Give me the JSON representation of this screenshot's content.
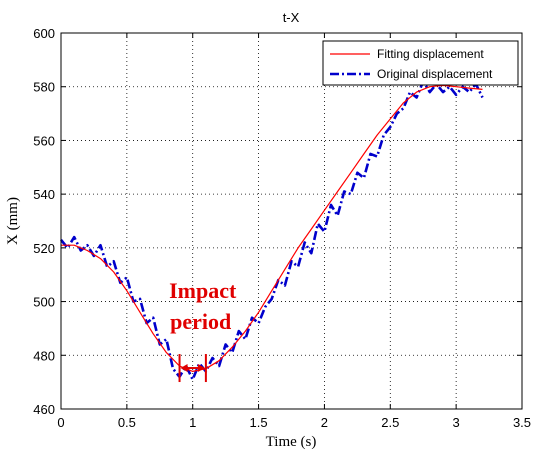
{
  "chart_data": {
    "type": "line",
    "title": "t-X",
    "xlabel": "Time (s)",
    "ylabel": "X (mm)",
    "xlim": [
      0,
      3.5
    ],
    "ylim": [
      460,
      600
    ],
    "xticks": [
      0,
      0.5,
      1,
      1.5,
      2,
      2.5,
      3,
      3.5
    ],
    "yticks": [
      460,
      480,
      500,
      520,
      540,
      560,
      580,
      600
    ],
    "xtick_labels": [
      "0",
      "0.5",
      "1",
      "1.5",
      "2",
      "2.5",
      "3",
      "3.5"
    ],
    "ytick_labels": [
      "460",
      "480",
      "500",
      "520",
      "540",
      "560",
      "580",
      "600"
    ],
    "grid": true,
    "legend_position": "top-right",
    "series": [
      {
        "name": "Fitting displacement",
        "color": "#ff0000",
        "style": "solid",
        "x": [
          0,
          0.1,
          0.2,
          0.3,
          0.4,
          0.5,
          0.6,
          0.7,
          0.8,
          0.9,
          1.0,
          1.1,
          1.2,
          1.3,
          1.4,
          1.5,
          1.6,
          1.7,
          1.8,
          1.9,
          2.0,
          2.1,
          2.2,
          2.3,
          2.4,
          2.5,
          2.6,
          2.7,
          2.8,
          2.9,
          3.0,
          3.1,
          3.2
        ],
        "y": [
          521,
          521,
          519,
          516,
          511,
          504,
          496,
          488,
          481,
          476,
          474,
          475,
          478,
          483,
          489,
          496,
          504,
          512,
          520,
          527,
          534,
          541,
          548,
          555,
          562,
          568,
          574,
          578,
          580,
          580.5,
          580,
          579.5,
          579
        ]
      },
      {
        "name": "Original displacement",
        "color": "#0000cc",
        "style": "dashdot",
        "x": [
          0,
          0.05,
          0.1,
          0.15,
          0.2,
          0.25,
          0.3,
          0.35,
          0.4,
          0.45,
          0.5,
          0.55,
          0.6,
          0.65,
          0.7,
          0.75,
          0.8,
          0.85,
          0.9,
          0.95,
          1.0,
          1.05,
          1.1,
          1.15,
          1.2,
          1.25,
          1.3,
          1.35,
          1.4,
          1.45,
          1.5,
          1.55,
          1.6,
          1.65,
          1.7,
          1.75,
          1.8,
          1.85,
          1.9,
          1.95,
          2.0,
          2.05,
          2.1,
          2.15,
          2.2,
          2.25,
          2.3,
          2.35,
          2.4,
          2.45,
          2.5,
          2.55,
          2.6,
          2.65,
          2.7,
          2.75,
          2.8,
          2.85,
          2.9,
          2.95,
          3.0,
          3.05,
          3.1,
          3.15,
          3.2
        ],
        "y": [
          523,
          520,
          524,
          519,
          521,
          517,
          521,
          513,
          515,
          507,
          509,
          500,
          501,
          492,
          494,
          484,
          486,
          475,
          472,
          476,
          471,
          477,
          474,
          479,
          476,
          484,
          481,
          489,
          486,
          494,
          492,
          498,
          501,
          508,
          506,
          515,
          513,
          522,
          518,
          529,
          526,
          536,
          532,
          541,
          540,
          548,
          546,
          555,
          554,
          562,
          565,
          570,
          572,
          578,
          576,
          582,
          578,
          581,
          578,
          580,
          577,
          580,
          578,
          581,
          576
        ]
      }
    ],
    "annotations": [
      {
        "text": "Impact period",
        "x_start": 0.9,
        "x_end": 1.1,
        "y": 476
      }
    ]
  }
}
